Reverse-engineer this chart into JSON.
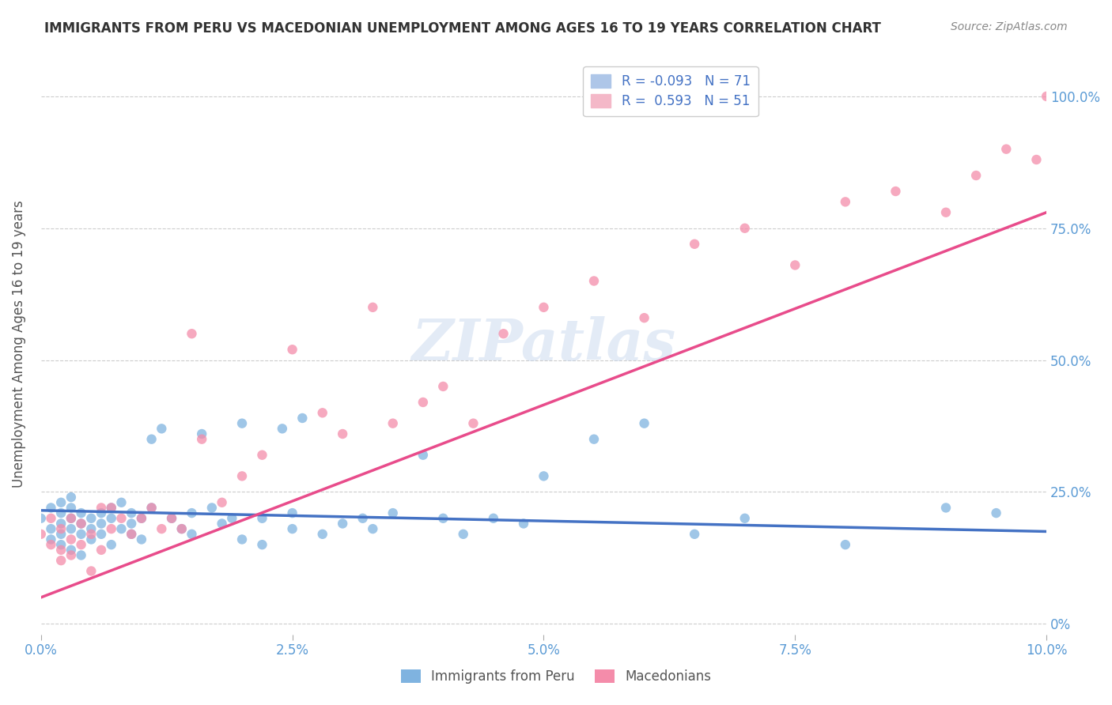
{
  "title": "IMMIGRANTS FROM PERU VS MACEDONIAN UNEMPLOYMENT AMONG AGES 16 TO 19 YEARS CORRELATION CHART",
  "source": "Source: ZipAtlas.com",
  "xlabel_bottom": "",
  "ylabel": "Unemployment Among Ages 16 to 19 years",
  "xlim": [
    0.0,
    0.1
  ],
  "ylim": [
    -0.02,
    1.08
  ],
  "xtick_labels": [
    "0.0%",
    "2.5%",
    "5.0%",
    "7.5%",
    "10.0%"
  ],
  "xtick_positions": [
    0.0,
    0.025,
    0.05,
    0.075,
    0.1
  ],
  "ytick_labels_right": [
    "0%",
    "25.0%",
    "50.0%",
    "75.0%",
    "100.0%"
  ],
  "ytick_positions": [
    0.0,
    0.25,
    0.5,
    0.75,
    1.0
  ],
  "legend_entries": [
    {
      "label": "R = -0.093   N = 71",
      "color": "#aec6e8"
    },
    {
      "label": "R =  0.593   N = 51",
      "color": "#f4b8c8"
    }
  ],
  "scatter_blue": {
    "x": [
      0.0,
      0.001,
      0.001,
      0.001,
      0.002,
      0.002,
      0.002,
      0.002,
      0.002,
      0.003,
      0.003,
      0.003,
      0.003,
      0.003,
      0.004,
      0.004,
      0.004,
      0.004,
      0.005,
      0.005,
      0.005,
      0.006,
      0.006,
      0.006,
      0.007,
      0.007,
      0.007,
      0.008,
      0.008,
      0.009,
      0.009,
      0.009,
      0.01,
      0.01,
      0.011,
      0.011,
      0.012,
      0.013,
      0.014,
      0.015,
      0.015,
      0.016,
      0.017,
      0.018,
      0.019,
      0.02,
      0.02,
      0.022,
      0.022,
      0.024,
      0.025,
      0.025,
      0.026,
      0.028,
      0.03,
      0.032,
      0.033,
      0.035,
      0.038,
      0.04,
      0.042,
      0.045,
      0.048,
      0.05,
      0.055,
      0.06,
      0.065,
      0.07,
      0.08,
      0.09,
      0.095
    ],
    "y": [
      0.2,
      0.18,
      0.22,
      0.16,
      0.19,
      0.21,
      0.17,
      0.23,
      0.15,
      0.2,
      0.18,
      0.22,
      0.14,
      0.24,
      0.19,
      0.17,
      0.21,
      0.13,
      0.2,
      0.18,
      0.16,
      0.19,
      0.21,
      0.17,
      0.2,
      0.22,
      0.15,
      0.23,
      0.18,
      0.19,
      0.21,
      0.17,
      0.2,
      0.16,
      0.35,
      0.22,
      0.37,
      0.2,
      0.18,
      0.21,
      0.17,
      0.36,
      0.22,
      0.19,
      0.2,
      0.38,
      0.16,
      0.2,
      0.15,
      0.37,
      0.18,
      0.21,
      0.39,
      0.17,
      0.19,
      0.2,
      0.18,
      0.21,
      0.32,
      0.2,
      0.17,
      0.2,
      0.19,
      0.28,
      0.35,
      0.38,
      0.17,
      0.2,
      0.15,
      0.22,
      0.21
    ],
    "color": "#7fb3e0",
    "alpha": 0.75
  },
  "scatter_pink": {
    "x": [
      0.0,
      0.001,
      0.001,
      0.002,
      0.002,
      0.002,
      0.003,
      0.003,
      0.003,
      0.004,
      0.004,
      0.005,
      0.005,
      0.006,
      0.006,
      0.007,
      0.007,
      0.008,
      0.009,
      0.01,
      0.011,
      0.012,
      0.013,
      0.014,
      0.015,
      0.016,
      0.018,
      0.02,
      0.022,
      0.025,
      0.028,
      0.03,
      0.033,
      0.035,
      0.038,
      0.04,
      0.043,
      0.046,
      0.05,
      0.055,
      0.06,
      0.065,
      0.07,
      0.075,
      0.08,
      0.085,
      0.09,
      0.093,
      0.096,
      0.099,
      0.1
    ],
    "y": [
      0.17,
      0.2,
      0.15,
      0.12,
      0.18,
      0.14,
      0.2,
      0.16,
      0.13,
      0.19,
      0.15,
      0.17,
      0.1,
      0.22,
      0.14,
      0.22,
      0.18,
      0.2,
      0.17,
      0.2,
      0.22,
      0.18,
      0.2,
      0.18,
      0.55,
      0.35,
      0.23,
      0.28,
      0.32,
      0.52,
      0.4,
      0.36,
      0.6,
      0.38,
      0.42,
      0.45,
      0.38,
      0.55,
      0.6,
      0.65,
      0.58,
      0.72,
      0.75,
      0.68,
      0.8,
      0.82,
      0.78,
      0.85,
      0.9,
      0.88,
      1.0
    ],
    "color": "#f48caa",
    "alpha": 0.75
  },
  "trendline_blue": {
    "x": [
      0.0,
      0.1
    ],
    "y": [
      0.215,
      0.175
    ],
    "color": "#4472c4",
    "linewidth": 2.5
  },
  "trendline_pink": {
    "x": [
      0.0,
      0.1
    ],
    "y": [
      0.05,
      0.78
    ],
    "color": "#e84c8b",
    "linewidth": 2.5
  },
  "watermark": "ZIPatlas",
  "background_color": "#ffffff",
  "grid_color": "#cccccc",
  "title_color": "#333333",
  "axis_color": "#5b9bd5",
  "legend_label_peru": "Immigrants from Peru",
  "legend_label_mac": "Macedonians"
}
